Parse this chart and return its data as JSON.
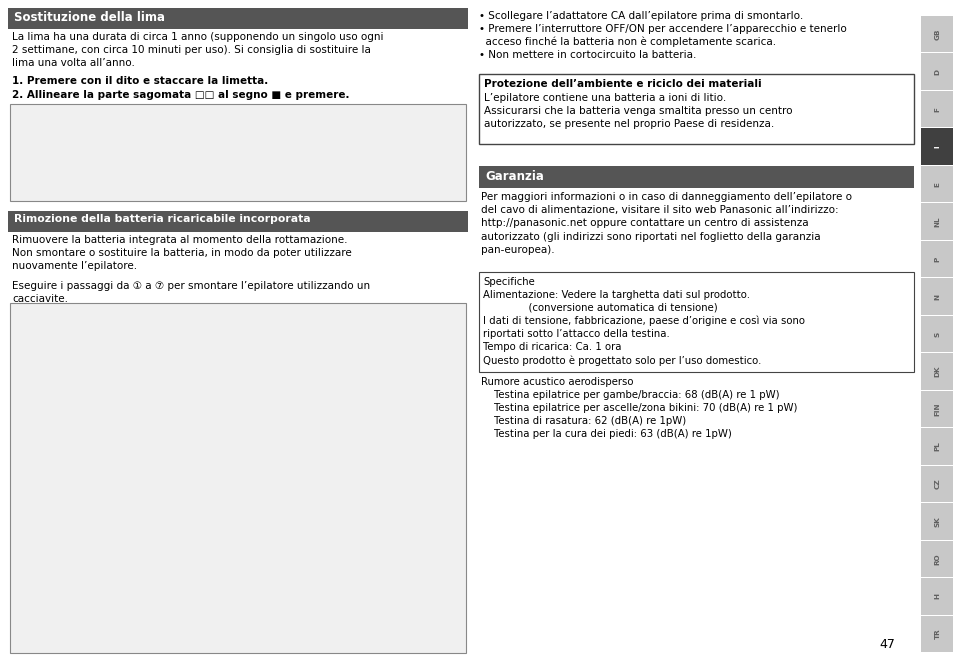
{
  "bg_color": "#ffffff",
  "sidebar_bg": "#c8c8c8",
  "sidebar_active_bg": "#404040",
  "header_bg": "#555555",
  "box_border": "#555555",
  "header1_text": "Sostituzione della lima",
  "header2_text": "Rimozione della batteria ricaricabile incorporata",
  "garanzia_text": "Garanzia",
  "sidebar_labels": [
    "GB",
    "D",
    "F",
    "I",
    "E",
    "NL",
    "P",
    "N",
    "S",
    "DK",
    "FIN",
    "PL",
    "CZ",
    "SK",
    "RO",
    "H",
    "TR"
  ],
  "sidebar_active": "I",
  "page_number": "47",
  "col1_body1": "La lima ha una durata di circa 1 anno (supponendo un singolo uso ogni\n2 settimane, con circa 10 minuti per uso). Si consiglia di sostituire la\nlima una volta all’anno.",
  "col1_step1": "1. Premere con il dito e staccare la limetta.",
  "col1_step2": "2. Allineare la parte sagomata □□ al segno ■ e premere.",
  "col1_body2": "Rimuovere la batteria integrata al momento della rottamazione.\nNon smontare o sostituire la batteria, in modo da poter utilizzare\nnuovamente l’epilatore.",
  "col1_body3": "Eseguire i passaggi da ① a ⑦ per smontare l’epilatore utilizzando un\ncacciavite.",
  "col2_bullet1": "• Scollegare l’adattatore CA dall’epilatore prima di smontarlo.",
  "col2_bullet2": "• Premere l’interruttore OFF/ON per accendere l’apparecchio e tenerlo\n  acceso finché la batteria non è completamente scarica.",
  "col2_bullet3": "• Non mettere in cortocircuito la batteria.",
  "prot_header": "Protezione dell’ambiente e riciclo dei materiali",
  "prot_body": "L’epilatore contiene una batteria a ioni di litio.\nAssicurarsi che la batteria venga smaltita presso un centro\nautorizzato, se presente nel proprio Paese di residenza.",
  "garanzia_body": "Per maggiori informazioni o in caso di danneggiamento dell’epilatore o\ndel cavo di alimentazione, visitare il sito web Panasonic all’indirizzo:\nhttp://panasonic.net oppure contattare un centro di assistenza\nautorizzato (gli indirizzi sono riportati nel foglietto della garanzia\npan-europea).",
  "spec_line1": "Specifiche",
  "spec_line2": "Alimentazione: Vedere la targhetta dati sul prodotto.",
  "spec_line3": "              (conversione automatica di tensione)",
  "spec_line4": "I dati di tensione, fabbricazione, paese d’origine e così via sono",
  "spec_line5": "riportati sotto l’attacco della testina.",
  "spec_line6": "Tempo di ricarica: Ca. 1 ora",
  "spec_line7": "Questo prodotto è progettato solo per l’uso domestico.",
  "rumore_line1": "Rumore acustico aerodisperso",
  "rumore_line2": "    Testina epilatrice per gambe/braccia: 68 (dB(A) re 1 pW)",
  "rumore_line3": "    Testina epilatrice per ascelle/zona bikini: 70 (dB(A) re 1 pW)",
  "rumore_line4": "    Testina di rasatura: 62 (dB(A) re 1pW)",
  "rumore_line5": "    Testina per la cura dei piedi: 63 (dB(A) re 1pW)"
}
